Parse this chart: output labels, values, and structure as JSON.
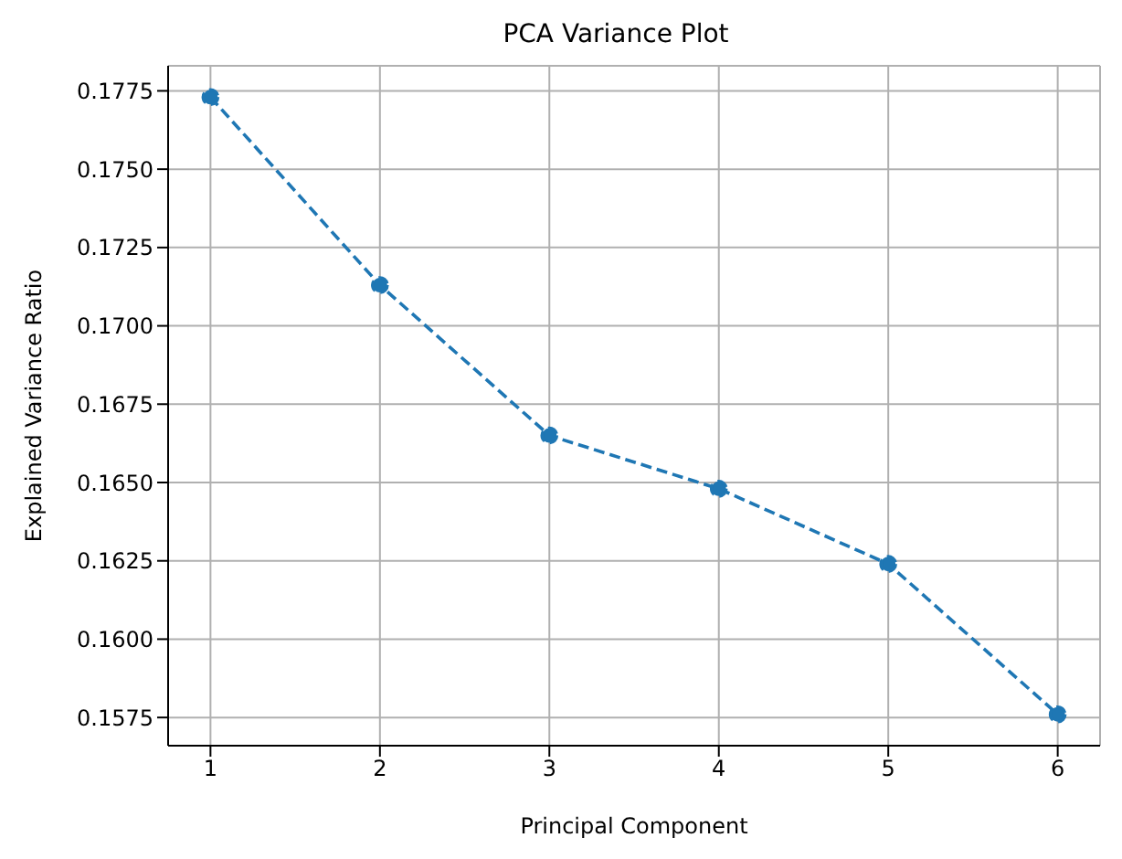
{
  "chart_data": {
    "type": "line",
    "title": "PCA Variance Plot",
    "xlabel": "Principal Component",
    "ylabel": "Explained Variance Ratio",
    "x": [
      1,
      2,
      3,
      4,
      5,
      6
    ],
    "series": [
      {
        "color": "#1f77b4",
        "values": [
          0.1773,
          0.1713,
          0.1665,
          0.1648,
          0.1624,
          0.1576
        ]
      }
    ],
    "xlim": [
      0.75,
      6.25
    ],
    "xticks": [
      1,
      2,
      3,
      4,
      5,
      6
    ],
    "ylim": [
      0.1566,
      0.1783
    ],
    "yticks": [
      0.1575,
      {
        "value": 0.16,
        "label": "0.1600"
      },
      0.1625,
      {
        "value": 0.165,
        "label": "0.1650"
      },
      0.1675,
      {
        "value": 0.17,
        "label": "0.1700"
      },
      0.1725,
      {
        "value": 0.175,
        "label": "0.1750"
      },
      0.1775
    ],
    "grid": true,
    "marker": "circle",
    "line_style": "dashed",
    "legend": false
  }
}
